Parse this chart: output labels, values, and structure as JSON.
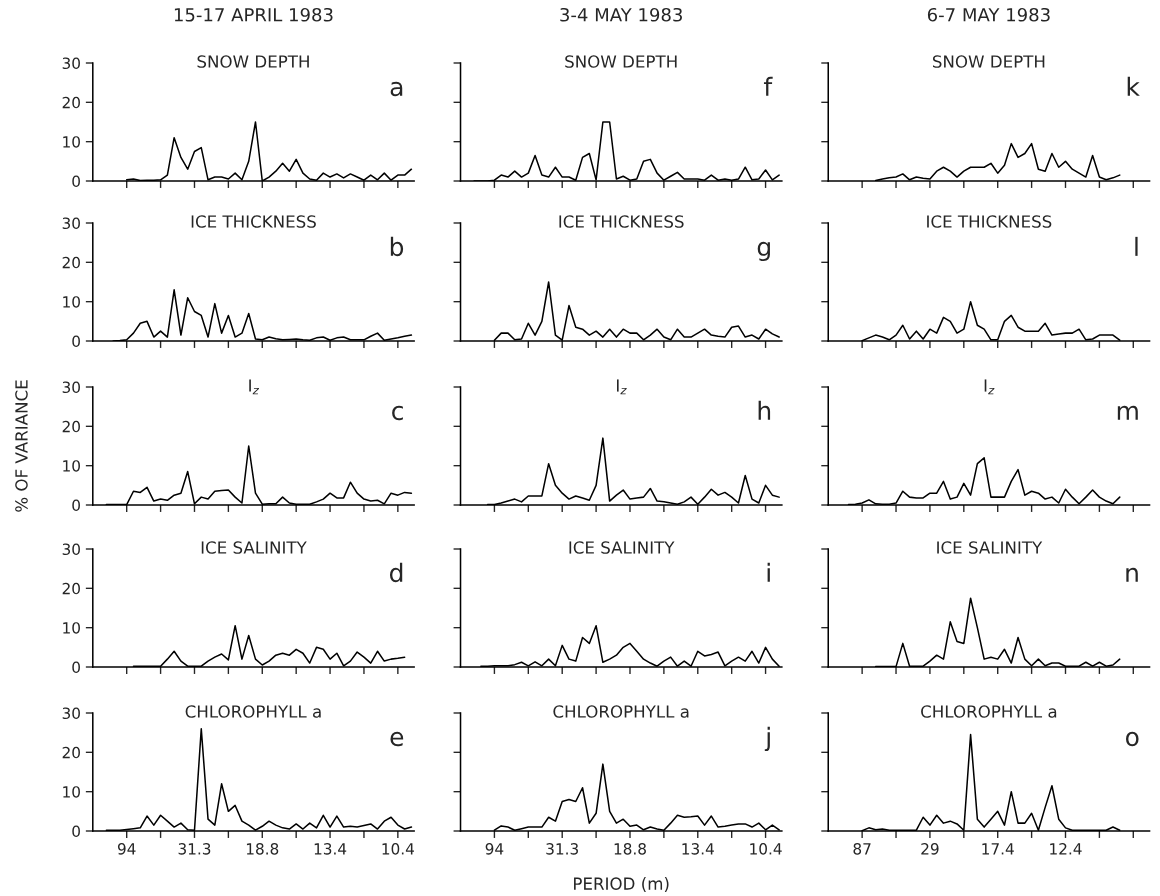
{
  "chart_data": [
    {
      "type": "line",
      "title": "15-17 APRIL 1983",
      "subtitle": "SNOW DEPTH",
      "annotations": [
        "a"
      ],
      "color": "#000000",
      "ylim": [
        0,
        30
      ],
      "yticks": [
        0,
        10,
        20,
        30
      ],
      "tick_labels": "y",
      "categories": [
        null,
        null,
        null,
        null,
        "94",
        null,
        null,
        null,
        null,
        null,
        null,
        null,
        null,
        null,
        "31.3",
        null,
        null,
        null,
        null,
        null,
        null,
        null,
        null,
        null,
        "18.8",
        null,
        null,
        null,
        null,
        null,
        null,
        null,
        null,
        null,
        "13.4",
        null,
        null,
        null,
        null,
        null,
        null,
        null,
        null,
        null,
        "10.4",
        null,
        null
      ],
      "values": [
        null,
        null,
        null,
        null,
        0.3,
        0.5,
        0.1,
        0.2,
        0.2,
        0.3,
        1.5,
        11,
        6,
        3,
        7.5,
        8.5,
        0.3,
        1,
        1,
        0.5,
        2,
        0.3,
        5,
        15,
        0,
        1,
        2.5,
        4.5,
        2.5,
        5.5,
        2,
        0.5,
        0.2,
        2,
        1,
        1.8,
        0.8,
        1.8,
        1,
        0.2,
        1.5,
        0.3,
        2,
        0.2,
        1.5,
        1.5,
        3
      ]
    },
    {
      "type": "line",
      "title": "ICE THICKNESS",
      "annotations": [
        "b"
      ],
      "color": "#000000",
      "ylim": [
        0,
        30
      ],
      "yticks": [
        0,
        10,
        20,
        30
      ],
      "tick_labels": "y",
      "categories": [
        null,
        null,
        null,
        null,
        "94",
        null,
        null,
        null,
        null,
        null,
        null,
        null,
        null,
        null,
        "31.3",
        null,
        null,
        null,
        null,
        null,
        null,
        null,
        null,
        null,
        "18.8",
        null,
        null,
        null,
        null,
        null,
        null,
        null,
        null,
        null,
        "13.4",
        null,
        null,
        null,
        null,
        null,
        null,
        null,
        null,
        null,
        "10.4",
        null,
        null
      ],
      "values": [
        null,
        null,
        0,
        0.1,
        0.3,
        2,
        4.5,
        5,
        1,
        2.5,
        1,
        13,
        1.5,
        11,
        7.5,
        6.5,
        1,
        9.5,
        2,
        6.5,
        1,
        2,
        7,
        0.5,
        0.3,
        1,
        0.6,
        0.3,
        0.4,
        0.5,
        0.3,
        0.2,
        0.8,
        1,
        0.2,
        0.8,
        1,
        0.3,
        0.3,
        0.3,
        1.2,
        2,
        0.2,
        0.5,
        0.8,
        1.2,
        1.5
      ]
    },
    {
      "type": "line",
      "title": "I$_{z}$",
      "annotations": [
        "c"
      ],
      "ylabel": "% OF VARIANCE",
      "color": "#000000",
      "ylim": [
        0,
        30
      ],
      "yticks": [
        0,
        10,
        20,
        30
      ],
      "tick_labels": "y",
      "categories": [
        null,
        null,
        null,
        null,
        "94",
        null,
        null,
        null,
        null,
        null,
        null,
        null,
        null,
        null,
        "31.3",
        null,
        null,
        null,
        null,
        null,
        null,
        null,
        null,
        null,
        "18.8",
        null,
        null,
        null,
        null,
        null,
        null,
        null,
        null,
        null,
        "13.4",
        null,
        null,
        null,
        null,
        null,
        null,
        null,
        null,
        null,
        "10.4",
        null,
        null
      ],
      "values": [
        null,
        0.1,
        0.1,
        0.1,
        0.1,
        3.5,
        3.2,
        4.5,
        1,
        1.5,
        1.2,
        2.5,
        3,
        8.5,
        0.3,
        2,
        1.5,
        3.5,
        3.7,
        3.8,
        2,
        0.5,
        15,
        3,
        0.2,
        0.3,
        0.3,
        2,
        0.5,
        0.2,
        0.2,
        0.2,
        0.8,
        1.5,
        3,
        1.8,
        1.8,
        5.8,
        3,
        1.5,
        1,
        1.2,
        0.3,
        3,
        2.5,
        3.2,
        3
      ]
    },
    {
      "type": "line",
      "title": "ICE SALINITY",
      "annotations": [
        "d"
      ],
      "color": "#000000",
      "ylim": [
        0,
        30
      ],
      "yticks": [
        0,
        10,
        20,
        30
      ],
      "tick_labels": "y",
      "categories": [
        null,
        null,
        null,
        null,
        "94",
        null,
        null,
        null,
        null,
        null,
        null,
        null,
        null,
        null,
        "31.3",
        null,
        null,
        null,
        null,
        null,
        null,
        null,
        null,
        null,
        "18.8",
        null,
        null,
        null,
        null,
        null,
        null,
        null,
        null,
        null,
        "13.4",
        null,
        null,
        null,
        null,
        null,
        null,
        null,
        null,
        null,
        "10.4",
        null,
        null
      ],
      "values": [
        null,
        null,
        null,
        null,
        null,
        0.2,
        0.2,
        0.2,
        0.2,
        0.2,
        2,
        4,
        1.5,
        0.2,
        0.2,
        0.2,
        1.5,
        2.5,
        3.3,
        1.8,
        10.5,
        2,
        8,
        2,
        0.5,
        1.5,
        3,
        3.5,
        3,
        4.5,
        3.5,
        1,
        5,
        4.5,
        2,
        3.5,
        0.3,
        1.5,
        3.8,
        2.5,
        1,
        4,
        1.5,
        2,
        2.2,
        2.5,
        null
      ]
    },
    {
      "type": "line",
      "title": "CHLOROPHYLL a",
      "annotations": [
        "e"
      ],
      "color": "#000000",
      "ylim": [
        0,
        30
      ],
      "yticks": [
        0,
        10,
        20,
        30
      ],
      "categories": [
        null,
        null,
        null,
        null,
        "94",
        null,
        null,
        null,
        null,
        null,
        null,
        null,
        null,
        null,
        "31.3",
        null,
        null,
        null,
        null,
        null,
        null,
        null,
        null,
        null,
        "18.8",
        null,
        null,
        null,
        null,
        null,
        null,
        null,
        null,
        null,
        "13.4",
        null,
        null,
        null,
        null,
        null,
        null,
        null,
        null,
        null,
        "10.4",
        null,
        null
      ],
      "values": [
        null,
        0.2,
        0.2,
        0.2,
        0.4,
        0.6,
        0.8,
        3.8,
        1.5,
        4,
        2.5,
        1,
        2,
        0.3,
        0.2,
        26,
        3,
        1.5,
        12,
        5,
        6.5,
        2.5,
        1.5,
        0.2,
        1.2,
        2.5,
        1.5,
        0.8,
        0.5,
        1.8,
        0.5,
        2,
        0.8,
        4,
        1,
        3.8,
        1,
        1.2,
        1,
        1.4,
        1.8,
        0.5,
        2.5,
        3.5,
        1.5,
        0.5,
        1
      ]
    },
    {
      "type": "line",
      "title": "3-4 MAY 1983",
      "subtitle": "SNOW DEPTH",
      "annotations": [
        "f"
      ],
      "color": "#000000",
      "ylim": [
        0,
        30
      ],
      "yticks": [
        0,
        10,
        20,
        30
      ],
      "tick_labels": false,
      "categories": [
        null,
        null,
        null,
        null,
        "94",
        null,
        null,
        null,
        null,
        null,
        null,
        null,
        null,
        null,
        "31.3",
        null,
        null,
        null,
        null,
        null,
        null,
        null,
        null,
        null,
        "18.8",
        null,
        null,
        null,
        null,
        null,
        null,
        null,
        null,
        null,
        "13.4",
        null,
        null,
        null,
        null,
        null,
        null,
        null,
        null,
        null,
        "10.4",
        null,
        null
      ],
      "values": [
        null,
        0,
        0,
        0,
        0.2,
        1.5,
        1,
        2.5,
        1,
        2,
        6.5,
        1.5,
        1,
        3.5,
        1,
        1,
        0.2,
        6,
        7,
        0.3,
        15,
        15,
        0.5,
        1.2,
        0.2,
        0.5,
        5,
        5.5,
        2,
        0.2,
        1.2,
        2.2,
        0.5,
        0.5,
        0.5,
        0.2,
        1.5,
        0.2,
        0.5,
        0.2,
        0.5,
        3.5,
        0.3,
        0.5,
        2.8,
        0.3,
        1.5
      ]
    },
    {
      "type": "line",
      "title": "ICE THICKNESS",
      "annotations": [
        "g"
      ],
      "color": "#000000",
      "ylim": [
        0,
        30
      ],
      "yticks": [
        0,
        10,
        20,
        30
      ],
      "tick_labels": false,
      "categories": [
        null,
        null,
        null,
        null,
        "94",
        null,
        null,
        null,
        null,
        null,
        null,
        null,
        null,
        null,
        "31.3",
        null,
        null,
        null,
        null,
        null,
        null,
        null,
        null,
        null,
        "18.8",
        null,
        null,
        null,
        null,
        null,
        null,
        null,
        null,
        null,
        "13.4",
        null,
        null,
        null,
        null,
        null,
        null,
        null,
        null,
        null,
        "10.4",
        null,
        null
      ],
      "values": [
        null,
        null,
        null,
        null,
        0.2,
        2,
        2,
        0.3,
        0.5,
        4.5,
        1.5,
        5,
        15,
        1.5,
        0.2,
        9,
        3.5,
        3,
        1.5,
        2.5,
        1,
        3,
        1,
        3,
        2,
        2,
        0.3,
        1.5,
        3,
        1,
        0.3,
        3,
        1,
        1,
        2,
        3,
        1.5,
        1.2,
        1,
        3.5,
        3.8,
        1,
        1.5,
        0.5,
        3,
        1.8,
        1
      ]
    },
    {
      "type": "line",
      "title": "I$_{z}$",
      "annotations": [
        "h"
      ],
      "color": "#000000",
      "ylim": [
        0,
        30
      ],
      "yticks": [
        0,
        10,
        20,
        30
      ],
      "tick_labels": false,
      "categories": [
        null,
        null,
        null,
        null,
        "94",
        null,
        null,
        null,
        null,
        null,
        null,
        null,
        null,
        null,
        "31.3",
        null,
        null,
        null,
        null,
        null,
        null,
        null,
        null,
        null,
        "18.8",
        null,
        null,
        null,
        null,
        null,
        null,
        null,
        null,
        null,
        "13.4",
        null,
        null,
        null,
        null,
        null,
        null,
        null,
        null,
        null,
        "10.4",
        null,
        null
      ],
      "values": [
        null,
        null,
        null,
        0.1,
        0.1,
        0.5,
        1,
        1.5,
        0.8,
        2.3,
        2.3,
        2.3,
        10.5,
        5,
        3,
        1.5,
        2.3,
        1.8,
        1.2,
        5,
        17,
        1,
        2.5,
        3.8,
        1.5,
        1.8,
        2,
        4.2,
        1,
        0.8,
        0.5,
        0.2,
        0.8,
        2,
        0.2,
        2,
        4,
        2.5,
        3.2,
        2,
        0.5,
        7.5,
        1.5,
        0.5,
        5,
        2.5,
        2
      ]
    },
    {
      "type": "line",
      "title": "ICE SALINITY",
      "annotations": [
        "i"
      ],
      "color": "#000000",
      "ylim": [
        0,
        30
      ],
      "yticks": [
        0,
        10,
        20,
        30
      ],
      "tick_labels": false,
      "categories": [
        null,
        null,
        null,
        null,
        "94",
        null,
        null,
        null,
        null,
        null,
        null,
        null,
        null,
        null,
        "31.3",
        null,
        null,
        null,
        null,
        null,
        null,
        null,
        null,
        null,
        "18.8",
        null,
        null,
        null,
        null,
        null,
        null,
        null,
        null,
        null,
        "13.4",
        null,
        null,
        null,
        null,
        null,
        null,
        null,
        null,
        null,
        "10.4",
        null,
        null
      ],
      "values": [
        null,
        null,
        0.2,
        0.2,
        0.3,
        0.3,
        0.3,
        0.6,
        1.2,
        0.3,
        1.3,
        0.3,
        2,
        0.3,
        5.5,
        2,
        1.5,
        7.5,
        6,
        10.5,
        1.2,
        2,
        3,
        5,
        6,
        4,
        2,
        1,
        0.2,
        1.5,
        2.5,
        0.2,
        1.5,
        0.2,
        4,
        2.8,
        3.2,
        3.8,
        0.3,
        1.5,
        2.5,
        1.5,
        4,
        1,
        5,
        2,
        0.2
      ]
    },
    {
      "type": "line",
      "title": "CHLOROPHYLL a",
      "annotations": [
        "j"
      ],
      "xlabel": "PERIOD (m)",
      "color": "#000000",
      "ylim": [
        0,
        30
      ],
      "yticks": [
        0,
        10,
        20,
        30
      ],
      "tick_labels": "x",
      "categories": [
        null,
        null,
        null,
        null,
        "94",
        null,
        null,
        null,
        null,
        null,
        null,
        null,
        null,
        null,
        "31.3",
        null,
        null,
        null,
        null,
        null,
        null,
        null,
        null,
        null,
        "18.8",
        null,
        null,
        null,
        null,
        null,
        null,
        null,
        null,
        null,
        "13.4",
        null,
        null,
        null,
        null,
        null,
        null,
        null,
        null,
        null,
        "10.4",
        null,
        null
      ],
      "values": [
        null,
        null,
        null,
        null,
        0.2,
        1.3,
        1,
        0.2,
        0.6,
        1,
        1,
        1,
        3.5,
        2.5,
        7.5,
        8,
        7.5,
        11,
        2,
        4.5,
        17,
        5,
        2,
        3,
        1.2,
        1.5,
        0.3,
        1,
        0.5,
        0.2,
        2,
        4,
        3.5,
        3.6,
        3.8,
        1.5,
        3.8,
        1,
        1.2,
        1.5,
        1.8,
        1.8,
        1,
        2,
        0.3,
        1.5,
        0.3
      ]
    },
    {
      "type": "line",
      "title": "6-7 MAY 1983",
      "subtitle": "SNOW DEPTH",
      "annotations": [
        "k"
      ],
      "color": "#000000",
      "ylim": [
        0,
        30
      ],
      "yticks": [
        0,
        10,
        20,
        30
      ],
      "tick_labels": false,
      "categories": [
        null,
        null,
        null,
        null,
        "87",
        null,
        null,
        null,
        null,
        null,
        null,
        null,
        null,
        null,
        "29",
        null,
        null,
        null,
        null,
        null,
        null,
        null,
        null,
        null,
        "17.4",
        null,
        null,
        null,
        null,
        null,
        null,
        null,
        null,
        null,
        "12.4",
        null,
        null,
        null,
        null,
        null,
        null,
        null,
        null,
        null,
        null,
        null,
        null
      ],
      "values": [
        null,
        null,
        null,
        null,
        null,
        null,
        0.1,
        0.5,
        0.8,
        1,
        1.8,
        0.3,
        1,
        0.7,
        0.5,
        2.5,
        3.5,
        2.5,
        1,
        2.5,
        3.5,
        3.5,
        3.5,
        4.5,
        2,
        4,
        9.5,
        6,
        7,
        9.5,
        3,
        2.5,
        7,
        3.5,
        5,
        3,
        2,
        1,
        6.5,
        1,
        0.3,
        0.8,
        1.5,
        null,
        null,
        null,
        null
      ]
    },
    {
      "type": "line",
      "title": "ICE THICKNESS",
      "annotations": [
        "l"
      ],
      "color": "#000000",
      "ylim": [
        0,
        30
      ],
      "yticks": [
        0,
        10,
        20,
        30
      ],
      "tick_labels": false,
      "categories": [
        null,
        null,
        null,
        null,
        "87",
        null,
        null,
        null,
        null,
        null,
        null,
        null,
        null,
        null,
        "29",
        null,
        null,
        null,
        null,
        null,
        null,
        null,
        null,
        null,
        "17.4",
        null,
        null,
        null,
        null,
        null,
        null,
        null,
        null,
        null,
        "12.4",
        null,
        null,
        null,
        null,
        null,
        null,
        null,
        null,
        null,
        null,
        null,
        null
      ],
      "values": [
        null,
        null,
        null,
        null,
        0.1,
        0.8,
        1.5,
        1,
        0.3,
        1.5,
        4,
        0.5,
        2.5,
        0.5,
        3,
        2,
        6,
        5,
        2,
        3,
        10,
        4,
        3,
        0.3,
        0.3,
        5,
        6.5,
        3.5,
        2.5,
        2.5,
        2.5,
        4.5,
        1.5,
        1.8,
        2,
        2,
        3,
        0.3,
        0.5,
        1.5,
        1.5,
        1.5,
        0.2,
        null,
        null,
        null,
        null
      ]
    },
    {
      "type": "line",
      "title": "I$_{z}$",
      "annotations": [
        "m"
      ],
      "color": "#000000",
      "ylim": [
        0,
        30
      ],
      "yticks": [
        0,
        10,
        20,
        30
      ],
      "tick_labels": false,
      "categories": [
        null,
        null,
        null,
        null,
        "87",
        null,
        null,
        null,
        null,
        null,
        null,
        null,
        null,
        null,
        "29",
        null,
        null,
        null,
        null,
        null,
        null,
        null,
        null,
        null,
        "17.4",
        null,
        null,
        null,
        null,
        null,
        null,
        null,
        null,
        null,
        "12.4",
        null,
        null,
        null,
        null,
        null,
        null,
        null,
        null,
        null,
        null,
        null,
        null
      ],
      "values": [
        null,
        null,
        0.1,
        0.2,
        0.5,
        1.3,
        0.3,
        0.2,
        0.2,
        0.5,
        3.5,
        2,
        1.8,
        1.8,
        3,
        3,
        6,
        1.5,
        2,
        5.5,
        2.5,
        10.5,
        12,
        2,
        2,
        2,
        6,
        9,
        2.5,
        3.5,
        3,
        1.5,
        2,
        0.5,
        4,
        2,
        0.3,
        2,
        3.8,
        2,
        1,
        0.3,
        2,
        null,
        null,
        null,
        null
      ]
    },
    {
      "type": "line",
      "title": "ICE SALINITY",
      "annotations": [
        "n"
      ],
      "color": "#000000",
      "ylim": [
        0,
        30
      ],
      "yticks": [
        0,
        10,
        20,
        30
      ],
      "tick_labels": false,
      "categories": [
        null,
        null,
        null,
        null,
        "87",
        null,
        null,
        null,
        null,
        null,
        null,
        null,
        null,
        null,
        "29",
        null,
        null,
        null,
        null,
        null,
        null,
        null,
        null,
        null,
        "17.4",
        null,
        null,
        null,
        null,
        null,
        null,
        null,
        null,
        null,
        "12.4",
        null,
        null,
        null,
        null,
        null,
        null,
        null,
        null,
        null,
        null,
        null,
        null
      ],
      "values": [
        null,
        null,
        null,
        null,
        null,
        null,
        0.1,
        0.1,
        0.1,
        0.1,
        6,
        0.2,
        0.2,
        0.2,
        1.5,
        3,
        2,
        11.5,
        6.5,
        6,
        17.5,
        10,
        2,
        2.5,
        2,
        4.5,
        1,
        7.5,
        2,
        0.3,
        2,
        0.3,
        1,
        1,
        0.2,
        0.2,
        0.2,
        1.2,
        0.2,
        1.2,
        0.2,
        0.5,
        2,
        null,
        null,
        null,
        null
      ]
    },
    {
      "type": "line",
      "title": "CHLOROPHYLL a",
      "annotations": [
        "o"
      ],
      "color": "#000000",
      "ylim": [
        0,
        30
      ],
      "yticks": [
        0,
        10,
        20,
        30
      ],
      "tick_labels": "x",
      "categories": [
        null,
        null,
        null,
        null,
        "87",
        null,
        null,
        null,
        null,
        null,
        null,
        null,
        null,
        null,
        "29",
        null,
        null,
        null,
        null,
        null,
        null,
        null,
        null,
        null,
        "17.4",
        null,
        null,
        null,
        null,
        null,
        null,
        null,
        null,
        null,
        "12.4",
        null,
        null,
        null,
        null,
        null,
        null,
        null,
        null,
        null,
        null,
        null,
        null
      ],
      "values": [
        null,
        null,
        null,
        null,
        0.1,
        0.8,
        0.3,
        0.5,
        0.2,
        0.2,
        0.2,
        0.2,
        0.2,
        3.5,
        1.5,
        4,
        2,
        2.5,
        1.8,
        0.2,
        24.5,
        3,
        1,
        3,
        5,
        1.5,
        10,
        2,
        2,
        4.5,
        0.2,
        6,
        11.5,
        3,
        0.8,
        0.2,
        0.2,
        0.2,
        0.2,
        0.2,
        0.2,
        1,
        0.2,
        null,
        null,
        null,
        null
      ]
    }
  ]
}
